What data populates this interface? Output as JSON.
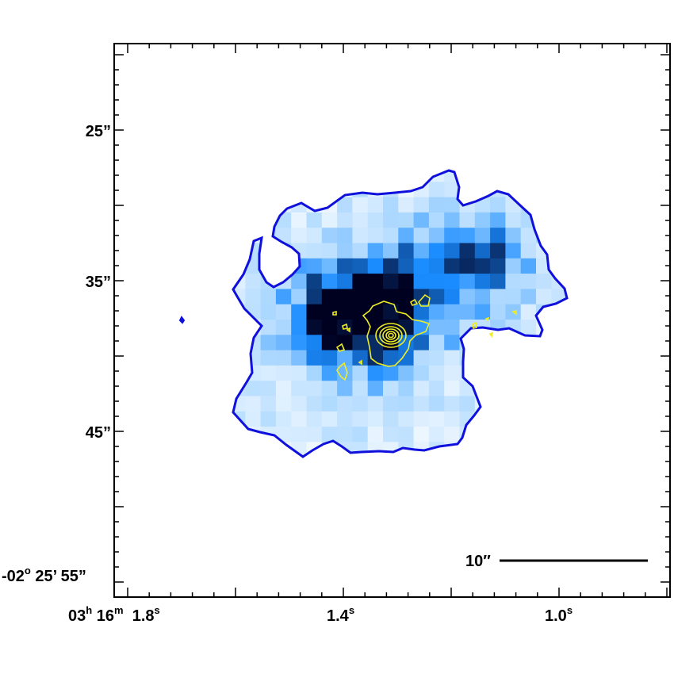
{
  "axes": {
    "y_labels": [
      {
        "id": "dec-25",
        "text": "25”"
      },
      {
        "id": "dec-35",
        "text": "35”"
      },
      {
        "id": "dec-45",
        "text": "45”"
      }
    ],
    "y_label_55": {
      "deg": "-02",
      "deg_unit": "o",
      "rest": " 25’ 55”"
    },
    "x_label_18": {
      "h": "03",
      "h_unit": "h",
      "m": " 16",
      "m_unit": "m",
      "s": "  1.8",
      "s_unit": "s"
    },
    "x_label_14": {
      "s": "1.4",
      "s_unit": "s"
    },
    "x_label_10": {
      "s": "1.0",
      "s_unit": "s"
    }
  },
  "scale_bar": {
    "label": "10″"
  },
  "colors": {
    "outer_contour": "#1010dd",
    "inner_contours": "#eeee22",
    "colormap_low": "#ffffff",
    "colormap_mid": "#1a8cff",
    "colormap_high": "#000020"
  },
  "map_data": {
    "type": "heatmap",
    "units": "normalized intensity (0-1)",
    "grid_note": "pixelated blue intensity map with irregular outer contour and yellow inner contours",
    "rows": [
      "....................",
      "..........##..",
      "......#######",
      "....##########",
      "...############",
      "..##############",
      "..##############",
      "..############",
      "...##########",
      "...#########",
      "...##########",
      "...########",
      "....#######"
    ]
  }
}
